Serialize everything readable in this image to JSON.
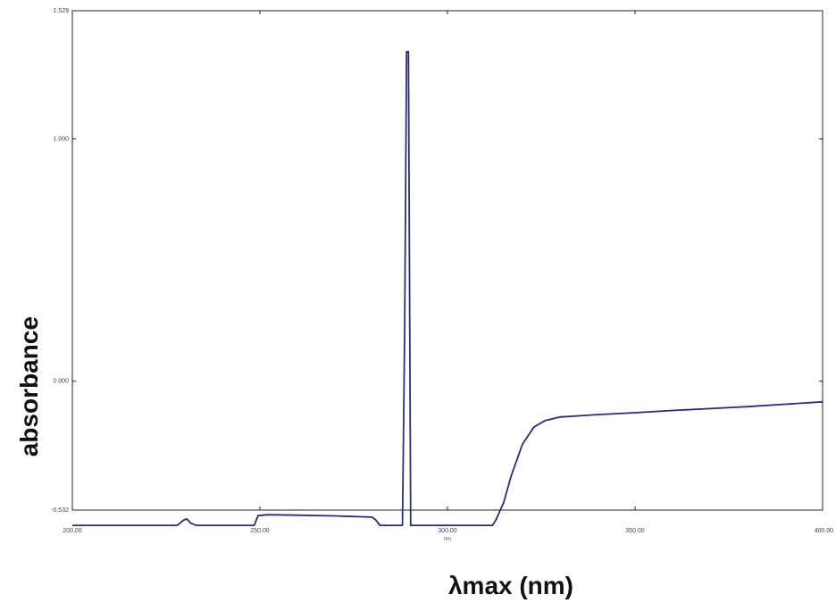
{
  "chart_data": {
    "type": "line",
    "title": "",
    "xlabel": "λmax (nm)",
    "x_unit_small": "nm",
    "ylabel": "absorbance",
    "xlim": [
      200,
      400
    ],
    "ylim": [
      -0.532,
      1.529
    ],
    "x_tick_labels": [
      "200.00",
      "250.00",
      "300.00",
      "350.00",
      "400.00"
    ],
    "x_tick_values": [
      200,
      250,
      300,
      350,
      400
    ],
    "y_tick_labels": [
      "-0.532",
      "0.000",
      "1.000",
      "1.529"
    ],
    "y_tick_values": [
      -0.532,
      0.0,
      1.0,
      1.529
    ],
    "line_color": "#2b2b7a",
    "grid": false,
    "series": [
      {
        "x": [
          200,
          210,
          220,
          228,
          229.5,
          230.5,
          231.5,
          233,
          240,
          248.5,
          249.5,
          252,
          260,
          270,
          280,
          281,
          282,
          285,
          288,
          288.6,
          289.1,
          289.6,
          290.2,
          291,
          295,
          300,
          305,
          310,
          312,
          313,
          315,
          317,
          320,
          323,
          326,
          330,
          335,
          340,
          350,
          360,
          370,
          380,
          390,
          400
        ],
        "y": [
          -0.595,
          -0.595,
          -0.595,
          -0.595,
          -0.575,
          -0.568,
          -0.585,
          -0.595,
          -0.595,
          -0.595,
          -0.555,
          -0.551,
          -0.553,
          -0.556,
          -0.561,
          -0.575,
          -0.595,
          -0.595,
          -0.595,
          0.22,
          1.36,
          1.36,
          -0.595,
          -0.595,
          -0.595,
          -0.595,
          -0.595,
          -0.595,
          -0.595,
          -0.57,
          -0.5,
          -0.39,
          -0.26,
          -0.19,
          -0.163,
          -0.148,
          -0.143,
          -0.138,
          -0.13,
          -0.121,
          -0.113,
          -0.105,
          -0.095,
          -0.085
        ]
      }
    ]
  }
}
